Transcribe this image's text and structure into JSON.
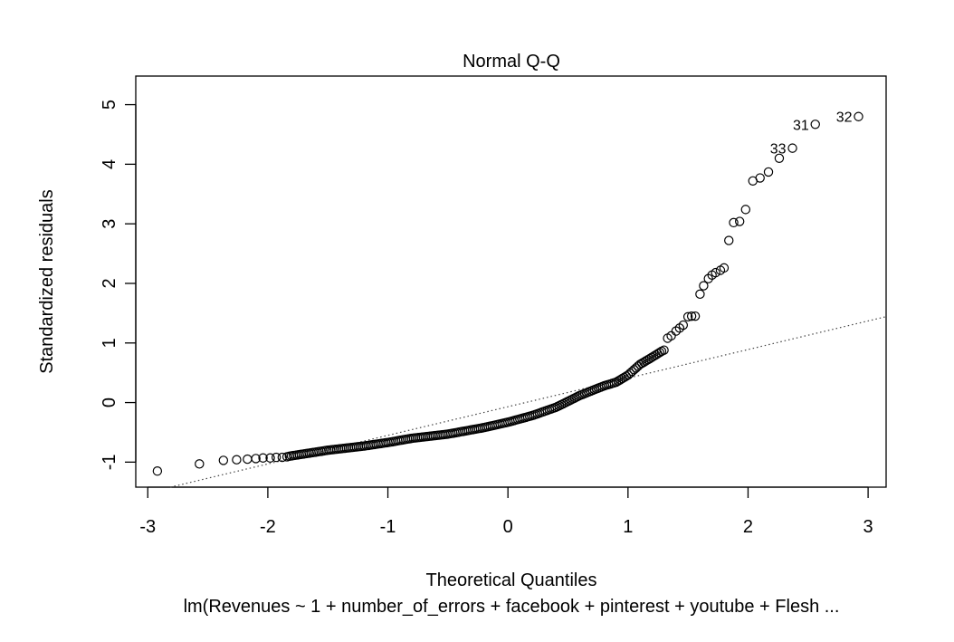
{
  "chart_data": {
    "type": "scatter",
    "title": "Normal Q-Q",
    "xlabel": "Theoretical Quantiles",
    "ylabel": "Standardized residuals",
    "subtitle": "lm(Revenues ~ 1 + number_of_errors + facebook + pinterest + youtube + Flesh ...",
    "xlim": [
      -3.1,
      3.15
    ],
    "ylim": [
      -1.42,
      5.48
    ],
    "xticks": [
      -3,
      -2,
      -1,
      0,
      1,
      2,
      3
    ],
    "yticks": [
      -1,
      0,
      1,
      2,
      3,
      4,
      5
    ],
    "xtick_labels": [
      "-3",
      "-2",
      "-1",
      "0",
      "1",
      "2",
      "3"
    ],
    "ytick_labels": [
      "-1",
      "0",
      "1",
      "2",
      "3",
      "4",
      "5"
    ],
    "reference_line": {
      "intercept": -0.07,
      "slope": 0.48,
      "style": "dotted"
    },
    "grid": false,
    "marker": "open-circle",
    "point_labels": [
      {
        "text": "31",
        "x": 2.56,
        "y": 4.67
      },
      {
        "text": "32",
        "x": 2.92,
        "y": 4.8
      },
      {
        "text": "33",
        "x": 2.37,
        "y": 4.27
      }
    ],
    "tail_points": {
      "x": [
        -2.92,
        -2.57,
        -2.37,
        -2.26,
        -2.17,
        -2.1,
        -2.04,
        -1.98,
        -1.93,
        -1.88,
        -1.84,
        1.3,
        1.33,
        1.36,
        1.4,
        1.43,
        1.46,
        1.5,
        1.53,
        1.56,
        1.6,
        1.63,
        1.67,
        1.7,
        1.73,
        1.77,
        1.8,
        1.84,
        1.88,
        1.93,
        1.98,
        2.04,
        2.1,
        2.17,
        2.26,
        2.37,
        2.56,
        2.92
      ],
      "y": [
        -1.15,
        -1.03,
        -0.97,
        -0.96,
        -0.95,
        -0.94,
        -0.93,
        -0.93,
        -0.92,
        -0.92,
        -0.91,
        0.88,
        1.08,
        1.12,
        1.2,
        1.25,
        1.3,
        1.44,
        1.45,
        1.45,
        1.82,
        1.96,
        2.08,
        2.14,
        2.18,
        2.22,
        2.26,
        2.72,
        3.02,
        3.04,
        3.24,
        3.72,
        3.77,
        3.87,
        4.1,
        4.27,
        4.67,
        4.8
      ]
    },
    "body_curve": {
      "x": [
        -1.82,
        -1.5,
        -1.2,
        -1.0,
        -0.8,
        -0.5,
        -0.2,
        0.0,
        0.2,
        0.4,
        0.6,
        0.8,
        0.9,
        1.0,
        1.1,
        1.2,
        1.28
      ],
      "y": [
        -0.9,
        -0.8,
        -0.73,
        -0.67,
        -0.6,
        -0.53,
        -0.42,
        -0.33,
        -0.22,
        -0.08,
        0.12,
        0.28,
        0.34,
        0.46,
        0.64,
        0.76,
        0.86
      ],
      "n_points": 190
    }
  }
}
